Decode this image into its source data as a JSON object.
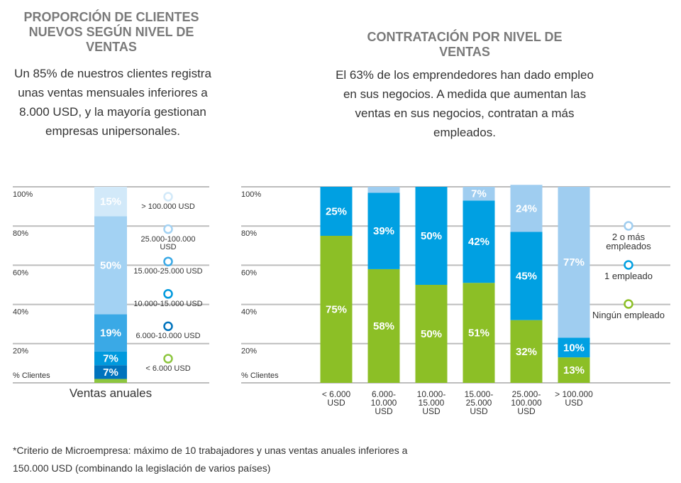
{
  "chart_data": [
    {
      "type": "bar",
      "stacked": true,
      "title": "PROPORCIÓN DE CLIENTES NUEVOS SEGÚN NIVEL DE VENTAS",
      "subtitle": "Un 85% de nuestros clientes registra unas ventas mensuales inferiores a 8.000 USD, y la mayoría gestionan empresas unipersonales.",
      "categories": [
        "Ventas anuales"
      ],
      "series": [
        {
          "name": "< 6.000 USD",
          "color": "#8dc63f",
          "values": [
            2
          ],
          "value_labels": [
            null
          ]
        },
        {
          "name": "6.000-10.000 USD",
          "color": "#0073bd",
          "values": [
            7
          ],
          "value_labels": [
            "7%"
          ]
        },
        {
          "name": "10.000-15.000 USD",
          "color": "#0099dd",
          "values": [
            7
          ],
          "value_labels": [
            "7%"
          ]
        },
        {
          "name": "15.000-25.000 USD",
          "color": "#3aa9e6",
          "values": [
            19
          ],
          "value_labels": [
            "19%"
          ]
        },
        {
          "name": "25.000-100.000 USD",
          "color": "#a3d2f3",
          "values": [
            50
          ],
          "value_labels": [
            "50%"
          ]
        },
        {
          "name": "> 100.000 USD",
          "color": "#d2e9f9",
          "values": [
            15
          ],
          "value_labels": [
            "15%"
          ]
        }
      ],
      "ylim": [
        0,
        100
      ],
      "yticks": [
        {
          "value": 0,
          "label": "% Clientes"
        },
        {
          "value": 20,
          "label": "20%"
        },
        {
          "value": 40,
          "label": "40%"
        },
        {
          "value": 60,
          "label": "60%"
        },
        {
          "value": 80,
          "label": "80%"
        },
        {
          "value": 100,
          "label": "100%"
        }
      ],
      "grid": true
    },
    {
      "type": "bar",
      "stacked": true,
      "title": "CONTRATACIÓN POR NIVEL DE VENTAS",
      "subtitle": "El 63% de los emprendedores han dado empleo en sus negocios. A medida que aumentan las ventas en sus negocios, contratan a más empleados.",
      "categories": [
        "< 6.000 USD",
        "6.000-10.000 USD",
        "10.000-15.000 USD",
        "15.000-25.000 USD",
        "25.000-100.000 USD",
        "> 100.000 USD"
      ],
      "series": [
        {
          "name": "Ningún empleado",
          "color": "#8cbf26",
          "values": [
            75,
            58,
            50,
            51,
            32,
            13
          ],
          "value_labels": [
            "75%",
            "58%",
            "50%",
            "51%",
            "32%",
            "13%"
          ]
        },
        {
          "name": "1 empleado",
          "color": "#00a0e2",
          "values": [
            25,
            39,
            50,
            42,
            45,
            10
          ],
          "value_labels": [
            "25%",
            "39%",
            "50%",
            "42%",
            "45%",
            "10%"
          ]
        },
        {
          "name": "2 o más empleados",
          "color": "#9fcdf0",
          "values": [
            0,
            3,
            0,
            7,
            24,
            77
          ],
          "value_labels": [
            null,
            null,
            null,
            "7%",
            "24%",
            "77%"
          ]
        }
      ],
      "ylim": [
        0,
        100
      ],
      "yticks": [
        {
          "value": 0,
          "label": "% Clientes"
        },
        {
          "value": 20,
          "label": "20%"
        },
        {
          "value": 40,
          "label": "40%"
        },
        {
          "value": 60,
          "label": "60%"
        },
        {
          "value": 80,
          "label": "80%"
        },
        {
          "value": 100,
          "label": "100%"
        }
      ],
      "grid": true
    }
  ],
  "footnote": "*Criterio de Microempresa: máximo de 10 trabajadores y unas ventas anuales inferiores a 150.000 USD (combinando la legislación de varios países)"
}
